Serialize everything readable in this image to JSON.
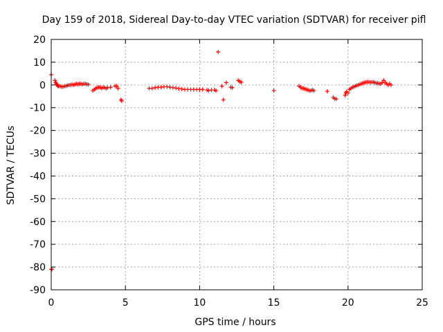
{
  "chart_data": {
    "type": "scatter",
    "title": "Day 159 of 2018, Sidereal Day-to-day VTEC variation (SDTVAR) for receiver pifl",
    "xlabel": "GPS time / hours",
    "ylabel": "SDTVAR / TECUs",
    "xlim": [
      0,
      25
    ],
    "ylim": [
      -90,
      20
    ],
    "xticks": [
      0,
      5,
      10,
      15,
      20,
      25
    ],
    "yticks": [
      20,
      10,
      0,
      -10,
      -20,
      -30,
      -40,
      -50,
      -60,
      -70,
      -80,
      -90
    ],
    "grid": true,
    "marker": "+",
    "series": [
      {
        "name": "SDTVAR",
        "color": "#ff0000",
        "points": [
          [
            0.0,
            4.5
          ],
          [
            0.0,
            -81.0
          ],
          [
            0.05,
            -81.0
          ],
          [
            0.25,
            2.0
          ],
          [
            0.3,
            1.0
          ],
          [
            0.35,
            0.5
          ],
          [
            0.4,
            0.0
          ],
          [
            0.45,
            -0.5
          ],
          [
            0.5,
            -0.5
          ],
          [
            0.6,
            -0.5
          ],
          [
            0.7,
            -0.8
          ],
          [
            0.8,
            -0.8
          ],
          [
            0.9,
            -0.5
          ],
          [
            1.0,
            -0.5
          ],
          [
            1.1,
            -0.2
          ],
          [
            1.2,
            0.0
          ],
          [
            1.3,
            0.0
          ],
          [
            1.4,
            0.2
          ],
          [
            1.5,
            0.0
          ],
          [
            1.6,
            0.2
          ],
          [
            1.7,
            0.5
          ],
          [
            1.8,
            0.3
          ],
          [
            1.9,
            0.5
          ],
          [
            2.0,
            0.5
          ],
          [
            2.1,
            0.3
          ],
          [
            2.2,
            0.5
          ],
          [
            2.3,
            0.5
          ],
          [
            2.4,
            0.3
          ],
          [
            2.5,
            0.2
          ],
          [
            2.8,
            -2.5
          ],
          [
            2.9,
            -2.0
          ],
          [
            3.0,
            -1.5
          ],
          [
            3.1,
            -1.2
          ],
          [
            3.2,
            -1.0
          ],
          [
            3.3,
            -1.0
          ],
          [
            3.4,
            -1.5
          ],
          [
            3.5,
            -1.0
          ],
          [
            3.6,
            -1.2
          ],
          [
            3.7,
            -1.5
          ],
          [
            3.8,
            -1.2
          ],
          [
            4.0,
            -1.0
          ],
          [
            4.3,
            -0.5
          ],
          [
            4.4,
            -0.5
          ],
          [
            4.5,
            -1.5
          ],
          [
            4.7,
            -6.5
          ],
          [
            4.75,
            -7.0
          ],
          [
            6.6,
            -1.5
          ],
          [
            6.8,
            -1.5
          ],
          [
            7.0,
            -1.2
          ],
          [
            7.2,
            -1.0
          ],
          [
            7.4,
            -1.0
          ],
          [
            7.6,
            -0.8
          ],
          [
            7.8,
            -0.8
          ],
          [
            8.0,
            -1.0
          ],
          [
            8.2,
            -1.2
          ],
          [
            8.4,
            -1.4
          ],
          [
            8.6,
            -1.6
          ],
          [
            8.8,
            -1.8
          ],
          [
            9.0,
            -2.0
          ],
          [
            9.2,
            -2.0
          ],
          [
            9.4,
            -2.0
          ],
          [
            9.6,
            -2.0
          ],
          [
            9.8,
            -2.0
          ],
          [
            10.0,
            -2.0
          ],
          [
            10.2,
            -2.0
          ],
          [
            10.5,
            -2.2
          ],
          [
            10.6,
            -2.5
          ],
          [
            10.8,
            -2.2
          ],
          [
            11.0,
            -2.2
          ],
          [
            11.1,
            -2.5
          ],
          [
            11.25,
            14.5
          ],
          [
            11.5,
            -0.5
          ],
          [
            11.6,
            -6.5
          ],
          [
            11.8,
            1.0
          ],
          [
            12.1,
            -1.0
          ],
          [
            12.2,
            -1.2
          ],
          [
            12.6,
            2.0
          ],
          [
            12.7,
            1.5
          ],
          [
            12.8,
            1.2
          ],
          [
            15.0,
            -2.5
          ],
          [
            16.7,
            -0.5
          ],
          [
            16.8,
            -1.0
          ],
          [
            16.9,
            -1.5
          ],
          [
            17.0,
            -1.5
          ],
          [
            17.1,
            -1.8
          ],
          [
            17.2,
            -2.0
          ],
          [
            17.3,
            -2.2
          ],
          [
            17.4,
            -2.5
          ],
          [
            17.5,
            -2.5
          ],
          [
            17.6,
            -2.2
          ],
          [
            17.7,
            -2.5
          ],
          [
            18.6,
            -2.8
          ],
          [
            19.0,
            -5.5
          ],
          [
            19.1,
            -6.0
          ],
          [
            19.2,
            -6.2
          ],
          [
            19.8,
            -4.5
          ],
          [
            19.85,
            -3.5
          ],
          [
            19.9,
            -3.0
          ],
          [
            20.0,
            -3.5
          ],
          [
            20.1,
            -2.0
          ],
          [
            20.2,
            -1.5
          ],
          [
            20.3,
            -1.0
          ],
          [
            20.4,
            -0.8
          ],
          [
            20.5,
            -0.5
          ],
          [
            20.6,
            -0.2
          ],
          [
            20.7,
            0.0
          ],
          [
            20.8,
            0.3
          ],
          [
            20.9,
            0.5
          ],
          [
            21.0,
            0.8
          ],
          [
            21.1,
            1.0
          ],
          [
            21.2,
            1.2
          ],
          [
            21.3,
            1.3
          ],
          [
            21.4,
            1.3
          ],
          [
            21.5,
            1.2
          ],
          [
            21.6,
            1.2
          ],
          [
            21.7,
            1.3
          ],
          [
            21.8,
            1.0
          ],
          [
            21.9,
            0.8
          ],
          [
            22.0,
            0.8
          ],
          [
            22.1,
            0.5
          ],
          [
            22.2,
            0.5
          ],
          [
            22.3,
            1.0
          ],
          [
            22.4,
            2.0
          ],
          [
            22.5,
            1.0
          ],
          [
            22.6,
            0.5
          ],
          [
            22.7,
            0.0
          ],
          [
            22.8,
            0.5
          ],
          [
            22.9,
            0.0
          ]
        ]
      }
    ]
  }
}
